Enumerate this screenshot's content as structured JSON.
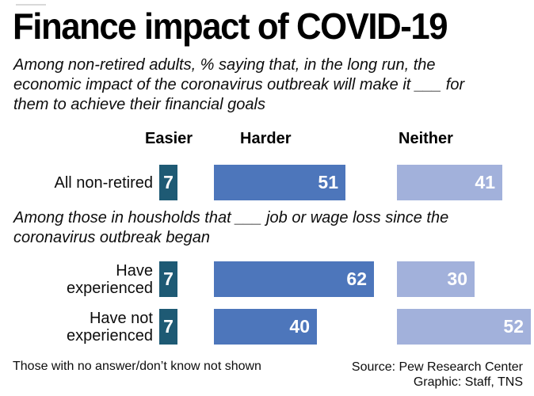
{
  "title": "Finance impact of COVID-19",
  "subtitle": "Among non-retired adults, % saying that, in the long run, the\neconomic impact of the coronavirus outbreak will make it ___ for\nthem to achieve their financial goals",
  "section_note": "Among those in housholds that ___ job or wage loss since the\ncoronavirus outbreak began",
  "footnote": "Those with no answer/don’t know not shown",
  "source_line1": "Source: Pew Research Center",
  "source_line2": "Graphic: Staff, TNS",
  "colors": {
    "easier": "#1e5a74",
    "harder": "#4d76bb",
    "neither": "#a2b1db"
  },
  "rows": [
    {
      "label": "All non-retired",
      "easier": 7,
      "harder": 51,
      "neither": 41
    },
    {
      "label": "Have\nexperienced",
      "easier": 7,
      "harder": 62,
      "neither": 30
    },
    {
      "label": "Have not\nexperienced",
      "easier": 7,
      "harder": 40,
      "neither": 52
    }
  ],
  "chart_data": {
    "type": "bar",
    "orientation": "horizontal",
    "unit": "percent",
    "title": "Finance impact of COVID-19",
    "categories": [
      "All non-retired",
      "Have experienced",
      "Have not experienced"
    ],
    "series": [
      {
        "name": "Easier",
        "values": [
          7,
          7,
          7
        ],
        "color": "#1e5a74"
      },
      {
        "name": "Harder",
        "values": [
          51,
          62,
          40
        ],
        "color": "#4d76bb"
      },
      {
        "name": "Neither",
        "values": [
          41,
          30,
          52
        ],
        "color": "#a2b1db"
      }
    ],
    "xlim": [
      0,
      62
    ],
    "grid": false,
    "value_labels": "inside-end",
    "legend_position": "column-headers-above-bars"
  }
}
